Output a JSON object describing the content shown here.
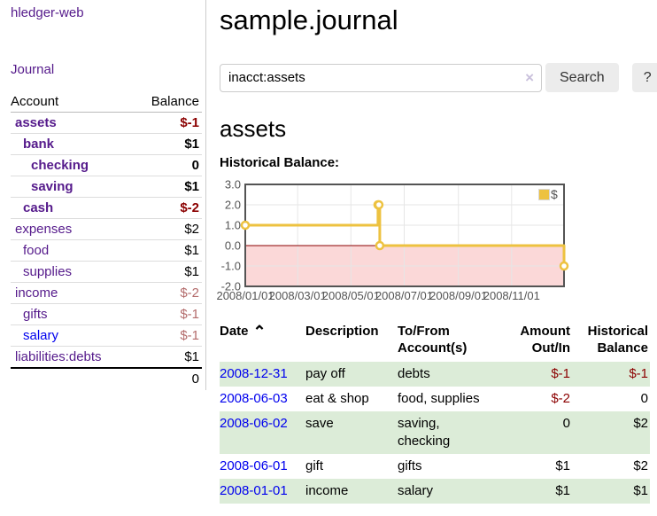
{
  "app": {
    "brand": "hledger-web"
  },
  "colors": {
    "purple_link": "#551a8b",
    "blue_link": "#0000ee",
    "negative_strong": "#8b0000",
    "negative_weak": "#b36b6b",
    "row_stripe_green": "#dcecd8",
    "chart_text_gray": "#545454",
    "chart_line_yellow": "#edc240"
  },
  "sidebar": {
    "journal_link": "Journal",
    "accounts_table": {
      "headers": [
        "Account",
        "Balance"
      ],
      "rows": [
        {
          "account": "assets",
          "depth": 1,
          "bold": true,
          "balance": "$-1",
          "balance_class": "neg-strong",
          "link_class": "purple"
        },
        {
          "account": "bank",
          "depth": 2,
          "bold": true,
          "balance": "$1",
          "balance_class": "pos",
          "link_class": "purple"
        },
        {
          "account": "checking",
          "depth": 3,
          "bold": true,
          "balance": "0",
          "balance_class": "pos",
          "link_class": "purple"
        },
        {
          "account": "saving",
          "depth": 3,
          "bold": true,
          "balance": "$1",
          "balance_class": "pos",
          "link_class": "purple"
        },
        {
          "account": "cash",
          "depth": 2,
          "bold": true,
          "balance": "$-2",
          "balance_class": "neg-strong",
          "link_class": "purple"
        },
        {
          "account": "expenses",
          "depth": 1,
          "bold": false,
          "balance": "$2",
          "balance_class": "pos",
          "link_class": "purple"
        },
        {
          "account": "food",
          "depth": 2,
          "bold": false,
          "balance": "$1",
          "balance_class": "pos",
          "link_class": "purple"
        },
        {
          "account": "supplies",
          "depth": 2,
          "bold": false,
          "balance": "$1",
          "balance_class": "pos",
          "link_class": "purple"
        },
        {
          "account": "income",
          "depth": 1,
          "bold": false,
          "balance": "$-2",
          "balance_class": "neg-weak",
          "link_class": "purple"
        },
        {
          "account": "gifts",
          "depth": 2,
          "bold": false,
          "balance": "$-1",
          "balance_class": "neg-weak",
          "link_class": "purple"
        },
        {
          "account": "salary",
          "depth": 2,
          "bold": false,
          "balance": "$-1",
          "balance_class": "neg-weak",
          "link_class": "blue"
        },
        {
          "account": "liabilities:debts",
          "depth": 1,
          "bold": false,
          "balance": "$1",
          "balance_class": "pos",
          "link_class": "purple"
        }
      ],
      "total": "0"
    }
  },
  "header": {
    "title": "sample.journal"
  },
  "search": {
    "value": "inacct:assets",
    "clear_icon": "×",
    "button_label": "Search",
    "help_label": "?"
  },
  "account_page": {
    "heading": "assets",
    "chart_label": "Historical Balance:"
  },
  "chart_data": {
    "type": "line",
    "style": "step",
    "title": "Historical Balance",
    "series": [
      {
        "name": "$",
        "color": "#edc240",
        "points": [
          [
            "2008-01-01",
            1
          ],
          [
            "2008-06-01",
            2
          ],
          [
            "2008-06-02",
            2
          ],
          [
            "2008-06-03",
            0
          ],
          [
            "2008-12-31",
            -1
          ]
        ]
      }
    ],
    "x_range": [
      "2008-01-01",
      "2008-12-31"
    ],
    "x_ticks": [
      "2008/01/01",
      "2008/03/01",
      "2008/05/01",
      "2008/07/01",
      "2008/09/01",
      "2008/11/01"
    ],
    "y_ticks": [
      3.0,
      2.0,
      1.0,
      0.0,
      -1.0,
      -2.0
    ],
    "ylim": [
      -2,
      3
    ],
    "grid": true,
    "legend": {
      "label": "$",
      "position": "top-right"
    },
    "negative_region_color": "#fbd8d8",
    "zero_line_color": "#8b0000",
    "border_color": "#545454",
    "gridline_color": "#e6e6e6",
    "tick_text_color": "#545454"
  },
  "register": {
    "headers": {
      "date": "Date",
      "date_sort_icon": "⌃",
      "description": "Description",
      "tofrom": "To/From Account(s)",
      "amount": "Amount Out/In",
      "balance": "Historical Balance"
    },
    "rows": [
      {
        "date": "2008-12-31",
        "description": "pay off",
        "accounts": "debts",
        "amount": "$-1",
        "balance": "$-1"
      },
      {
        "date": "2008-06-03",
        "description": "eat & shop",
        "accounts": "food, supplies",
        "amount": "$-2",
        "balance": "0"
      },
      {
        "date": "2008-06-02",
        "description": "save",
        "accounts": "saving, checking",
        "amount": "0",
        "balance": "$2"
      },
      {
        "date": "2008-06-01",
        "description": "gift",
        "accounts": "gifts",
        "amount": "$1",
        "balance": "$2"
      },
      {
        "date": "2008-01-01",
        "description": "income",
        "accounts": "salary",
        "amount": "$1",
        "balance": "$1"
      }
    ]
  }
}
